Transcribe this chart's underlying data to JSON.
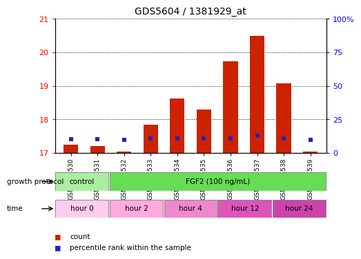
{
  "title": "GDS5604 / 1381929_at",
  "samples": [
    "GSM1224530",
    "GSM1224531",
    "GSM1224532",
    "GSM1224533",
    "GSM1224534",
    "GSM1224535",
    "GSM1224536",
    "GSM1224537",
    "GSM1224538",
    "GSM1224539"
  ],
  "red_bar_tops": [
    17.25,
    17.2,
    17.05,
    17.85,
    18.62,
    18.3,
    19.73,
    20.5,
    19.07,
    17.05
  ],
  "blue_marker_y": [
    17.42,
    17.42,
    17.38,
    17.44,
    17.44,
    17.44,
    17.44,
    17.52,
    17.44,
    17.39
  ],
  "ylim_left": [
    17.0,
    21.0
  ],
  "ylim_right": [
    0,
    100
  ],
  "yticks_left": [
    17,
    18,
    19,
    20,
    21
  ],
  "yticks_right": [
    0,
    25,
    50,
    75,
    100
  ],
  "bar_color": "#cc2200",
  "blue_color": "#2222bb",
  "bar_bottom": 17.0,
  "gp_labels": [
    {
      "text": "control",
      "start": 0,
      "end": 2,
      "color": "#aaeea0"
    },
    {
      "text": "FGF2 (100 ng/mL)",
      "start": 2,
      "end": 10,
      "color": "#66dd55"
    }
  ],
  "time_labels": [
    {
      "text": "hour 0",
      "start": 0,
      "end": 2,
      "color": "#ffccee"
    },
    {
      "text": "hour 2",
      "start": 2,
      "end": 4,
      "color": "#ffaadd"
    },
    {
      "text": "hour 4",
      "start": 4,
      "end": 6,
      "color": "#ee88cc"
    },
    {
      "text": "hour 12",
      "start": 6,
      "end": 8,
      "color": "#dd55bb"
    },
    {
      "text": "hour 24",
      "start": 8,
      "end": 10,
      "color": "#cc44aa"
    }
  ],
  "legend_count_color": "#cc2200",
  "legend_pct_color": "#2222bb"
}
